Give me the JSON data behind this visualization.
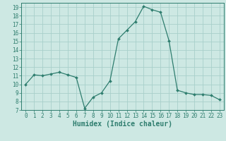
{
  "x": [
    0,
    1,
    2,
    3,
    4,
    5,
    6,
    7,
    8,
    9,
    10,
    11,
    12,
    13,
    14,
    15,
    16,
    17,
    18,
    19,
    20,
    21,
    22,
    23
  ],
  "y": [
    10.0,
    11.1,
    11.0,
    11.2,
    11.4,
    11.1,
    10.8,
    7.2,
    8.5,
    9.0,
    10.4,
    15.3,
    16.3,
    17.3,
    19.1,
    18.7,
    18.4,
    15.1,
    9.3,
    9.0,
    8.8,
    8.8,
    8.7,
    8.2
  ],
  "line_color": "#2e7d6e",
  "marker": "D",
  "marker_size": 2.0,
  "bg_color": "#cde8e3",
  "grid_color": "#a8d0ca",
  "axis_color": "#2e7d6e",
  "tick_color": "#2e7d6e",
  "xlabel": "Humidex (Indice chaleur)",
  "xlabel_fontsize": 7,
  "xlim": [
    -0.5,
    23.5
  ],
  "ylim": [
    7,
    19.5
  ],
  "yticks": [
    7,
    8,
    9,
    10,
    11,
    12,
    13,
    14,
    15,
    16,
    17,
    18,
    19
  ],
  "xticks": [
    0,
    1,
    2,
    3,
    4,
    5,
    6,
    7,
    8,
    9,
    10,
    11,
    12,
    13,
    14,
    15,
    16,
    17,
    18,
    19,
    20,
    21,
    22,
    23
  ],
  "tick_fontsize": 5.5
}
